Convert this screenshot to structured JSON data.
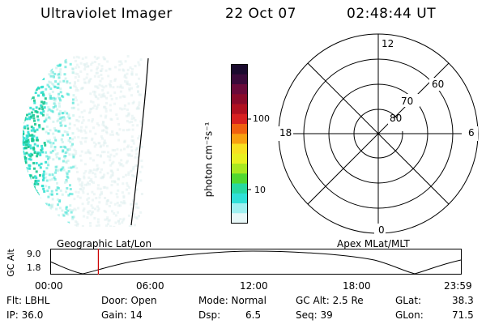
{
  "header": {
    "instrument": "Ultraviolet Imager",
    "date": "22 Oct 07",
    "time": "02:48:44 UT"
  },
  "colorbar": {
    "unit_label": "photon cm⁻²s⁻¹",
    "ticks": [
      "100",
      "10"
    ],
    "colors": [
      "#1a0a2e",
      "#3a0a3a",
      "#6a0a3a",
      "#8a0a2a",
      "#b01020",
      "#d82020",
      "#f06010",
      "#f8a010",
      "#f8e020",
      "#e8f020",
      "#a8e820",
      "#50d830",
      "#28d8a0",
      "#30e0d8",
      "#a0f0f0",
      "#e8f8f8"
    ]
  },
  "polar_plot": {
    "mlt_labels": [
      "12",
      "18",
      "6",
      "0"
    ],
    "lat_labels": [
      "60",
      "70",
      "80"
    ]
  },
  "timeline": {
    "ylabel": "GC Alt",
    "left_title": "Geographic Lat/Lon",
    "right_title": "Apex MLat/MLT",
    "ytick_top": "9.0",
    "ytick_bottom": "1.8",
    "xticks": [
      "00:00",
      "06:00",
      "12:00",
      "18:00",
      "23:59"
    ],
    "marker_time_fraction": 0.1172,
    "marker_color": "#cc0000"
  },
  "info": {
    "flt": "Flt: LBHL",
    "ip": "IP: 36.0",
    "door": "Door: Open",
    "gain": "Gain: 14",
    "mode": "Mode: Normal",
    "dsp_label": "Dsp:",
    "dsp_value": "6.5",
    "gc_alt": "GC Alt: 2.5 Re",
    "seq": "Seq: 39",
    "glat_label": "GLat:",
    "glat_value": "38.3",
    "glon_label": "GLon:",
    "glon_value": "71.5"
  },
  "colors": {
    "aurora_main": "#30e0d0",
    "aurora_dense": "#18c890",
    "aurora_faint": "#b8ece8",
    "aurora_pale": "#dceeee"
  }
}
